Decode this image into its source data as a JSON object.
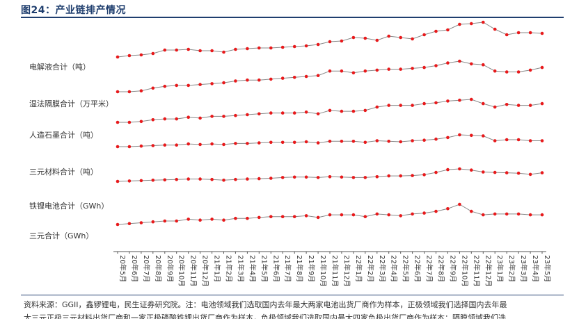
{
  "figure": {
    "title": "图24：产业链排产情况",
    "source_line1": "资料来源：GGII，鑫锣锂电，民生证券研究院。注：电池领域我们选取国内去年最大两家电池出货厂商作为样本，正极领域我们选择国内去年最",
    "source_line2": "大三元正极三元材料出货厂商和一家正极磷酸铁锂出货厂商作为样本，负极领域我们选取国内最大四家负极出货厂商作为样本；隔膜领域我们选"
  },
  "chart_data": {
    "type": "line",
    "x": [
      "20年5月",
      "20年6月",
      "20年7月",
      "20年8月",
      "20年9月",
      "20年10月",
      "20年11月",
      "20年12月",
      "21年1月",
      "21年2月",
      "21年3月",
      "21年4月",
      "21年5月",
      "21年6月",
      "21年7月",
      "21年8月",
      "21年9月",
      "21年10月",
      "21年11月",
      "21年12月",
      "22年1月",
      "22年2月",
      "22年3月",
      "22年4月",
      "22年5月",
      "22年6月",
      "22年7月",
      "22年8月",
      "22年9月",
      "22年10月",
      "22年11月",
      "22年12月",
      "23年1月",
      "23年2月",
      "23年3月",
      "23年4月",
      "23年5月"
    ],
    "series": [
      {
        "name": "电解液合计（吨）",
        "values": [
          20,
          22,
          23,
          25,
          30,
          30,
          31,
          29,
          29,
          27,
          31,
          32,
          33,
          33,
          34,
          35,
          36,
          38,
          42,
          43,
          48,
          47,
          44,
          50,
          48,
          46,
          52,
          57,
          59,
          67,
          68,
          70,
          60,
          52,
          55,
          55,
          54
        ]
      },
      {
        "name": "湿法隔膜合计（万平米）",
        "values": [
          18,
          18,
          19,
          22,
          24,
          25,
          25,
          26,
          27,
          28,
          30,
          31,
          31,
          32,
          33,
          34,
          35,
          36,
          41,
          41,
          39,
          41,
          42,
          43,
          43,
          44,
          45,
          47,
          50,
          52,
          49,
          48,
          41,
          40,
          40,
          42,
          45
        ]
      },
      {
        "name": "人造石墨合计（吨）",
        "values": [
          15,
          15,
          16,
          18,
          19,
          19,
          21,
          20,
          22,
          22,
          23,
          24,
          25,
          26,
          26,
          26,
          27,
          25,
          29,
          28,
          28,
          29,
          33,
          35,
          35,
          35,
          37,
          38,
          40,
          41,
          42,
          37,
          33,
          36,
          35,
          35,
          37
        ]
      },
      {
        "name": "三元材料合计（吨）",
        "values": [
          16,
          16,
          17,
          18,
          19,
          19,
          21,
          20,
          21,
          20,
          22,
          22,
          23,
          24,
          24,
          24,
          25,
          23,
          26,
          26,
          26,
          24,
          27,
          26,
          25,
          27,
          28,
          30,
          33,
          38,
          37,
          36,
          27,
          29,
          29,
          27,
          27
        ]
      },
      {
        "name": "铁锂电池合计（GWh）",
        "values": [
          18,
          19,
          20,
          21,
          22,
          23,
          24,
          24,
          23,
          21,
          23,
          24,
          25,
          26,
          28,
          29,
          29,
          28,
          30,
          29,
          28,
          28,
          30,
          32,
          32,
          33,
          35,
          41,
          48,
          50,
          47,
          42,
          41,
          40,
          39,
          36,
          40
        ]
      },
      {
        "name": "三元合计（GWh）",
        "values": [
          15,
          16,
          17,
          18,
          19,
          19,
          21,
          20,
          21,
          20,
          22,
          22,
          23,
          24,
          24,
          24,
          25,
          23,
          26,
          26,
          26,
          24,
          27,
          26,
          25,
          27,
          28,
          30,
          33,
          38,
          30,
          26,
          27,
          27,
          27,
          26,
          26
        ]
      }
    ],
    "colors": {
      "line": "#888888",
      "marker": "#e8191b",
      "axis": "#555555"
    },
    "legend": "labels left of each line",
    "grid": false
  }
}
